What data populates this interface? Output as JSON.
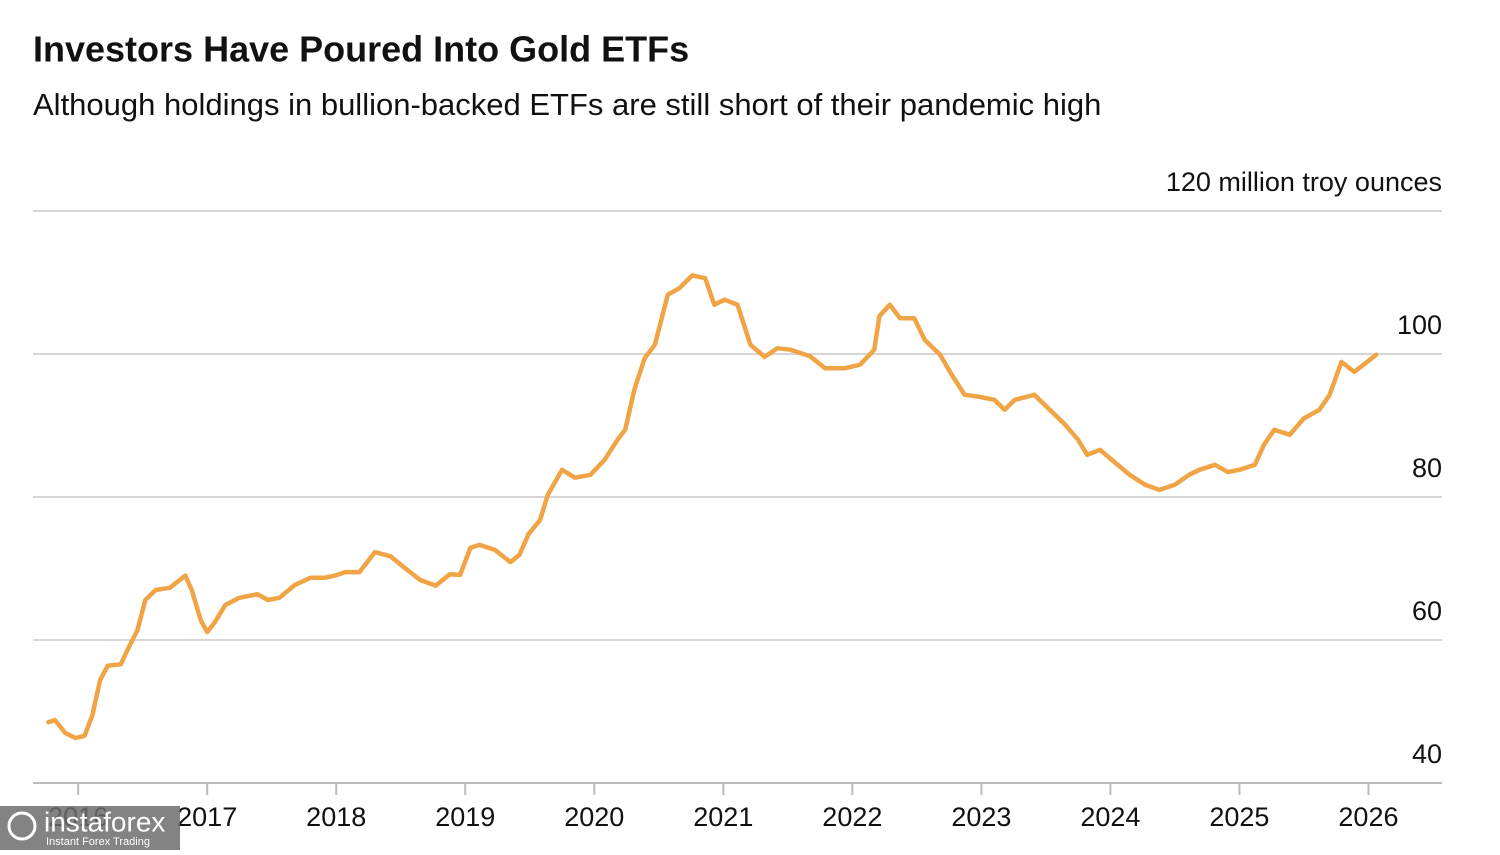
{
  "chart_data": {
    "type": "line",
    "title": "Investors Have Poured Into Gold ETFs",
    "subtitle": "Although holdings in bullion-backed ETFs are still short of their pandemic high",
    "xlim": [
      2015.65,
      2026.57
    ],
    "xticks": [
      2016,
      2017,
      2018,
      2019,
      2020,
      2021,
      2022,
      2023,
      2024,
      2025,
      2026
    ],
    "ylim": [
      40,
      120
    ],
    "yticks": [
      40,
      60,
      80,
      100,
      {
        "value": 120,
        "label": "120 million troy ounces"
      }
    ],
    "grid": true,
    "series": [
      {
        "color": "#f0a445",
        "x": [
          2015.77,
          2015.82,
          2015.9,
          2015.98,
          2016.05,
          2016.11,
          2016.17,
          2016.23,
          2016.33,
          2016.39,
          2016.46,
          2016.52,
          2016.6,
          2016.71,
          2016.83,
          2016.88,
          2016.95,
          2017.0,
          2017.06,
          2017.14,
          2017.25,
          2017.39,
          2017.47,
          2017.56,
          2017.68,
          2017.8,
          2017.91,
          2017.99,
          2018.07,
          2018.18,
          2018.3,
          2018.42,
          2018.53,
          2018.65,
          2018.77,
          2018.88,
          2018.96,
          2019.04,
          2019.11,
          2019.23,
          2019.35,
          2019.42,
          2019.49,
          2019.58,
          2019.64,
          2019.75,
          2019.85,
          2019.97,
          2020.08,
          2020.18,
          2020.24,
          2020.31,
          2020.39,
          2020.47,
          2020.57,
          2020.66,
          2020.76,
          2020.86,
          2020.93,
          2021.01,
          2021.11,
          2021.21,
          2021.32,
          2021.42,
          2021.52,
          2021.67,
          2021.79,
          2021.94,
          2022.06,
          2022.17,
          2022.21,
          2022.29,
          2022.37,
          2022.48,
          2022.56,
          2022.68,
          2022.77,
          2022.87,
          2022.99,
          2023.1,
          2023.18,
          2023.26,
          2023.41,
          2023.49,
          2023.65,
          2023.75,
          2023.82,
          2023.92,
          2024.03,
          2024.15,
          2024.27,
          2024.38,
          2024.5,
          2024.61,
          2024.69,
          2024.81,
          2024.91,
          2025.0,
          2025.12,
          2025.19,
          2025.27,
          2025.39,
          2025.5,
          2025.62,
          2025.7,
          2025.79,
          2025.89,
          2025.99,
          2026.06
        ],
        "values": [
          48.5,
          48.8,
          47.0,
          46.3,
          46.6,
          49.5,
          54.4,
          56.4,
          56.6,
          58.9,
          61.4,
          65.6,
          67.0,
          67.3,
          69.0,
          67.0,
          62.8,
          61.1,
          62.5,
          64.9,
          65.9,
          66.4,
          65.6,
          65.9,
          67.7,
          68.7,
          68.7,
          69.0,
          69.5,
          69.5,
          72.3,
          71.7,
          70.1,
          68.4,
          67.6,
          69.2,
          69.1,
          72.9,
          73.3,
          72.6,
          70.9,
          71.9,
          74.8,
          76.8,
          80.3,
          83.8,
          82.7,
          83.1,
          85.2,
          88.0,
          89.4,
          95.0,
          99.4,
          101.3,
          108.3,
          109.2,
          111.0,
          110.6,
          106.9,
          107.6,
          106.9,
          101.3,
          99.6,
          100.8,
          100.6,
          99.7,
          98.0,
          98.0,
          98.5,
          100.6,
          105.3,
          106.9,
          105.0,
          105.0,
          102.0,
          99.9,
          97.1,
          94.3,
          94.0,
          93.6,
          92.2,
          93.6,
          94.3,
          92.9,
          90.1,
          88.0,
          85.9,
          86.6,
          84.9,
          83.1,
          81.7,
          81.0,
          81.7,
          83.1,
          83.8,
          84.5,
          83.5,
          83.8,
          84.5,
          87.3,
          89.4,
          88.7,
          91.0,
          92.2,
          94.3,
          98.9,
          97.5,
          98.9,
          99.9
        ]
      }
    ]
  },
  "watermark": {
    "brand": "instaforex",
    "tagline": "Instant Forex Trading"
  }
}
